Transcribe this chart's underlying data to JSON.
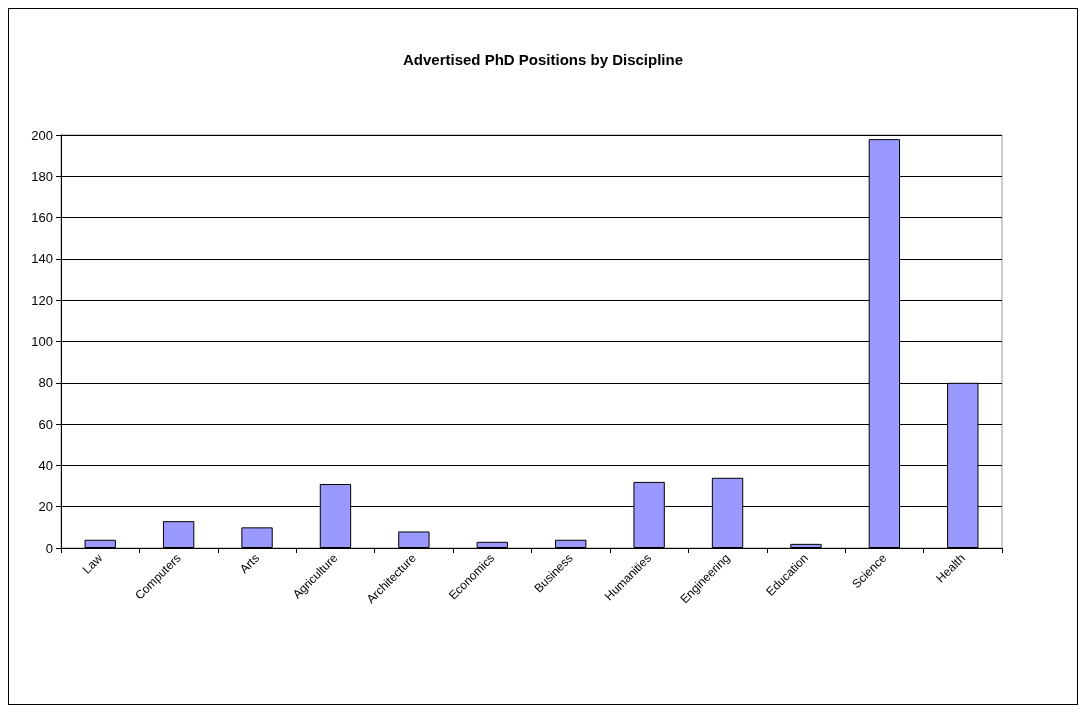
{
  "chart_data": {
    "type": "bar",
    "title": "Advertised PhD Positions by Discipline",
    "categories": [
      "Law",
      "Computers",
      "Arts",
      "Agriculture",
      "Architecture",
      "Economics",
      "Business",
      "Humanities",
      "Engineering",
      "Education",
      "Science",
      "Health"
    ],
    "values": [
      4,
      13,
      10,
      31,
      8,
      3,
      4,
      32,
      34,
      2,
      198,
      80
    ],
    "color": "#9999ff",
    "ylim": [
      0,
      200
    ],
    "yticks": [
      0,
      20,
      40,
      60,
      80,
      100,
      120,
      140,
      160,
      180,
      200
    ],
    "grid": "y"
  }
}
